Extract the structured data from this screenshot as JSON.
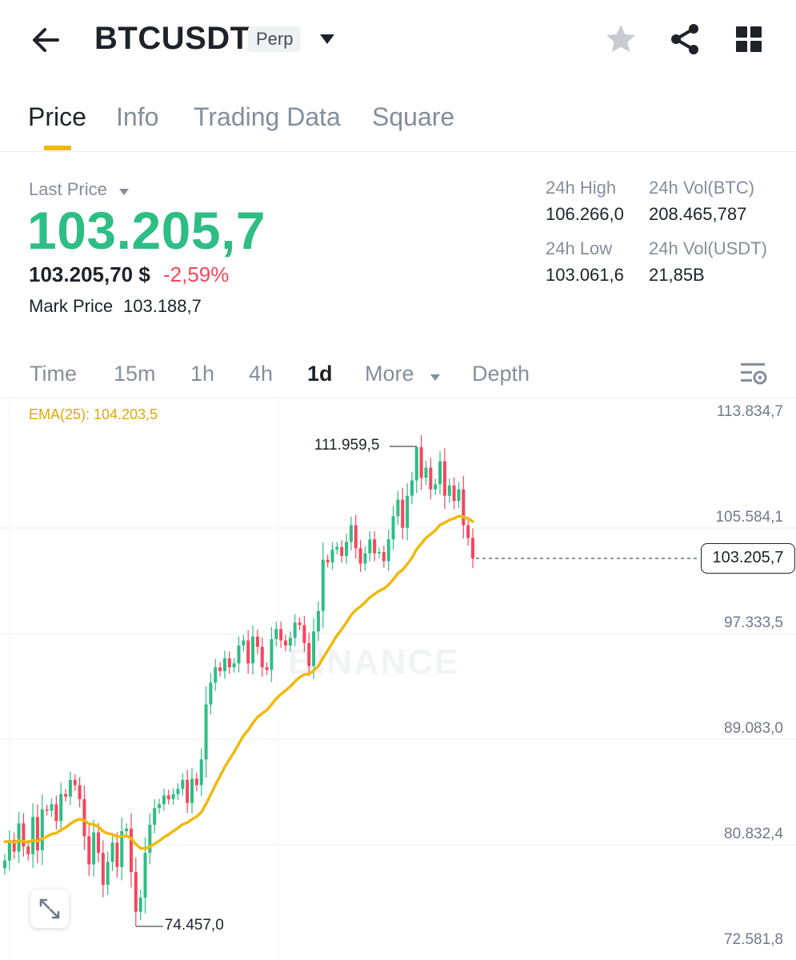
{
  "header": {
    "symbol": "BTCUSDT",
    "badge": "Perp"
  },
  "tabs": [
    {
      "label": "Price",
      "active": true
    },
    {
      "label": "Info",
      "active": false
    },
    {
      "label": "Trading Data",
      "active": false
    },
    {
      "label": "Square",
      "active": false
    }
  ],
  "price": {
    "last_price_label": "Last Price",
    "last_price": "103.205,7",
    "usd_price": "103.205,70 $",
    "change_pct": "-2,59%",
    "mark_label": "Mark Price",
    "mark_value": "103.188,7"
  },
  "stats": {
    "high_label": "24h High",
    "high_value": "106.266,0",
    "low_label": "24h Low",
    "low_value": "103.061,6",
    "vol_btc_label": "24h Vol(BTC)",
    "vol_btc_value": "208.465,787",
    "vol_usdt_label": "24h Vol(USDT)",
    "vol_usdt_value": "21,85B"
  },
  "intervals": [
    {
      "label": "Time",
      "active": false
    },
    {
      "label": "15m",
      "active": false
    },
    {
      "label": "1h",
      "active": false
    },
    {
      "label": "4h",
      "active": false
    },
    {
      "label": "1d",
      "active": true
    },
    {
      "label": "More",
      "active": false
    },
    {
      "label": "Depth",
      "active": false
    }
  ],
  "chart": {
    "ema_label": "EMA(25): 104.203,5",
    "current_price": "103.205,7",
    "high_annotation": "111.959,5",
    "low_annotation": "74.457,0",
    "watermark": "BINANCE",
    "y_axis": [
      "113.834,7",
      "105.584,1",
      "97.333,5",
      "89.083,0",
      "80.832,4",
      "72.581,8"
    ]
  },
  "colors": {
    "up": "#2ebd85",
    "down": "#f6465d",
    "ema": "#f0b90b",
    "accent": "#f0b90b"
  },
  "chart_data": {
    "type": "candlestick",
    "interval": "1d",
    "ylim": [
      72581.8,
      113834.7
    ],
    "y_ticks": [
      113834.7,
      105584.1,
      97333.5,
      89083.0,
      80832.4,
      72581.8
    ],
    "current_price": 103205.7,
    "annotated_high": 111959.5,
    "annotated_low": 74457.0,
    "ema_period": 25,
    "ema_value": 104203.5,
    "close_series_approx": [
      79600,
      81200,
      80300,
      82500,
      80700,
      80100,
      83000,
      80400,
      83600,
      83500,
      84000,
      82700,
      84800,
      84600,
      85900,
      85500,
      84400,
      81500,
      79300,
      81800,
      80200,
      77700,
      79500,
      81000,
      79100,
      81900,
      82100,
      78700,
      75600,
      76700,
      80200,
      82400,
      83700,
      84000,
      84700,
      84400,
      84800,
      85200,
      85900,
      84100,
      86000,
      85500,
      87500,
      91800,
      93500,
      94700,
      94400,
      95400,
      94700,
      95000,
      96400,
      96800,
      95000,
      97100,
      96300,
      94700,
      94500,
      96900,
      97700,
      96800,
      96400,
      97000,
      98200,
      98000,
      96600,
      94800,
      97500,
      99100,
      103100,
      102900,
      103900,
      104100,
      103400,
      104500,
      105800,
      104000,
      102800,
      103600,
      104700,
      103600,
      103700,
      103000,
      104700,
      106500,
      107800,
      105600,
      108100,
      109300,
      111900,
      109500,
      110300,
      108600,
      109000,
      110800,
      108100,
      108900,
      107700,
      108600,
      105800,
      104800,
      103200
    ]
  }
}
